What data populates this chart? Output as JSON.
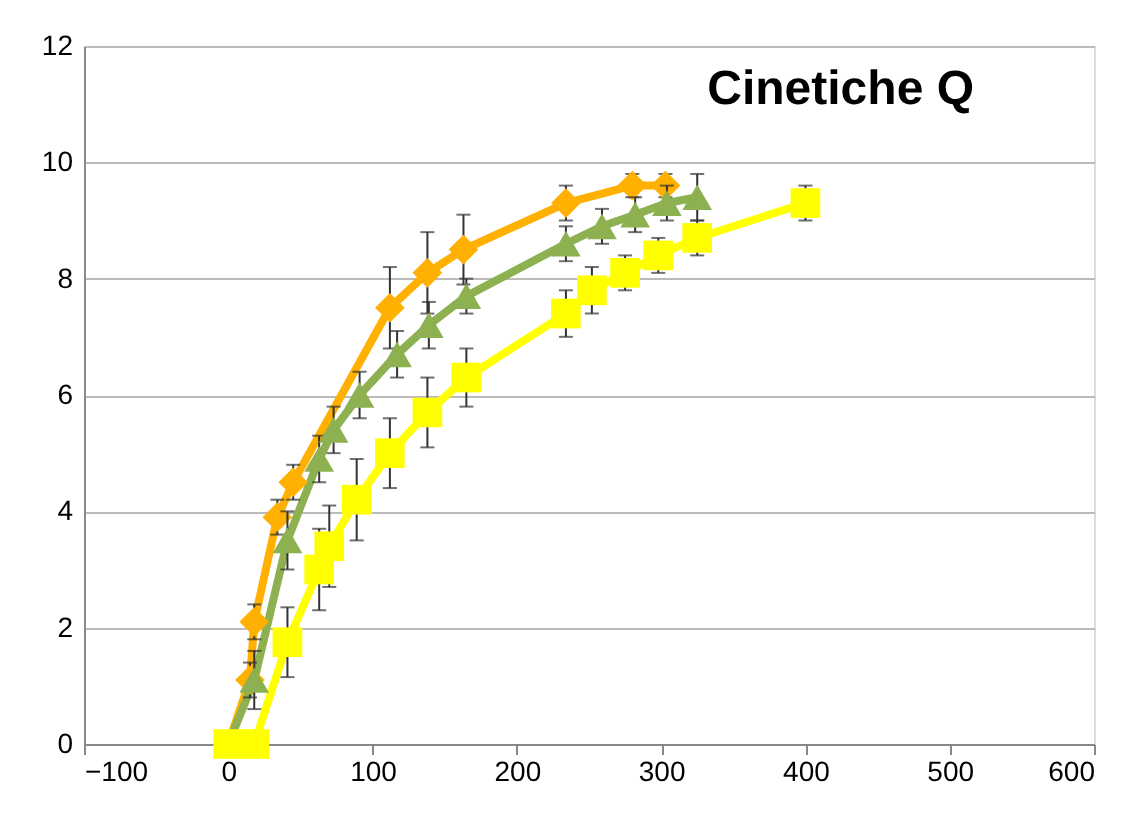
{
  "chart_data": {
    "type": "line",
    "title": "Cinetiche Q",
    "xlim": [
      -100,
      600
    ],
    "xticks": [
      -100,
      0,
      100,
      200,
      300,
      400,
      500,
      600
    ],
    "ylim": [
      0,
      12
    ],
    "yticks": [
      0,
      2,
      4,
      6,
      8,
      10,
      12
    ],
    "grid": "y",
    "series": [
      {
        "color": "#ffb000",
        "marker": "diamond",
        "x": [
          0,
          15,
          18,
          34,
          45,
          112,
          138,
          163,
          234,
          280,
          303
        ],
        "values": [
          0,
          1.1,
          2.1,
          3.9,
          4.5,
          7.5,
          8.1,
          8.5,
          9.3,
          9.6,
          9.6
        ],
        "errors": [
          0,
          0.3,
          0.3,
          0.3,
          0.3,
          0.7,
          0.7,
          0.6,
          0.3,
          0.2,
          0.2
        ]
      },
      {
        "color": "#8db050",
        "marker": "triangle",
        "x": [
          0,
          18,
          41,
          63,
          73,
          91,
          117,
          139,
          165,
          234,
          259,
          282,
          304,
          325
        ],
        "values": [
          0,
          1.1,
          3.5,
          4.9,
          5.4,
          6.0,
          6.7,
          7.2,
          7.7,
          8.6,
          8.9,
          9.1,
          9.3,
          9.4
        ],
        "errors": [
          0,
          0.5,
          0.5,
          0.4,
          0.4,
          0.4,
          0.4,
          0.4,
          0.3,
          0.3,
          0.3,
          0.3,
          0.3,
          0.4
        ]
      },
      {
        "color": "#ffff00",
        "marker": "square",
        "x": [
          0,
          18,
          41,
          63,
          70,
          89,
          112,
          138,
          165,
          234,
          252,
          275,
          298,
          325,
          400
        ],
        "values": [
          0,
          0,
          1.75,
          3.0,
          3.4,
          4.2,
          5.0,
          5.7,
          6.3,
          7.4,
          7.8,
          8.1,
          8.4,
          8.7,
          9.3
        ],
        "errors": [
          0,
          0,
          0.6,
          0.7,
          0.7,
          0.7,
          0.6,
          0.6,
          0.5,
          0.4,
          0.4,
          0.3,
          0.3,
          0.3,
          0.3
        ]
      }
    ]
  }
}
